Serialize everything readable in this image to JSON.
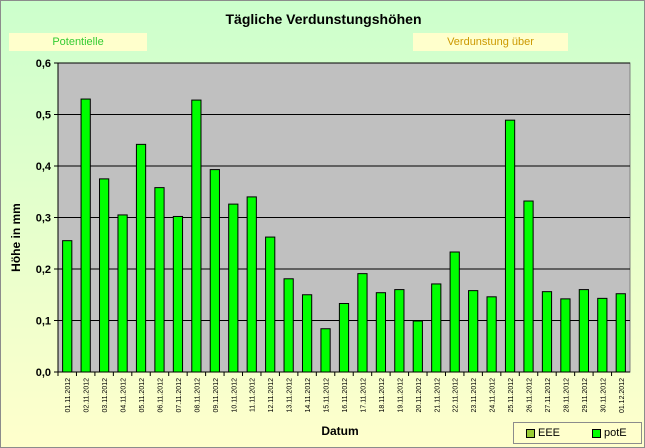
{
  "title": "Tägliche Verdunstungshöhen",
  "boxes": {
    "left": "Potentielle",
    "right": "Verdunstung über"
  },
  "legend": [
    {
      "name": "EEE",
      "color": "#99cc33"
    },
    {
      "name": "potE",
      "color": "#00ff00"
    }
  ],
  "chart_data": {
    "type": "bar",
    "title": "Tägliche Verdunstungshöhen",
    "xlabel": "Datum",
    "ylabel": "Höhe in mm",
    "ylim": [
      0,
      0.6
    ],
    "yticks": [
      "0,0",
      "0,1",
      "0,2",
      "0,3",
      "0,4",
      "0,5",
      "0,6"
    ],
    "grid": true,
    "legend_position": "bottom-right",
    "plot_background": "#c0c0c0",
    "bar_color": "#00ff00",
    "categories": [
      "01.11.2012",
      "02.11.2012",
      "03.11.2012",
      "04.11.2012",
      "05.11.2012",
      "06.11.2012",
      "07.11.2012",
      "08.11.2012",
      "09.11.2012",
      "10.11.2012",
      "11.11.2012",
      "12.11.2012",
      "13.11.2012",
      "14.11.2012",
      "15.11.2012",
      "16.11.2012",
      "17.11.2012",
      "18.11.2012",
      "19.11.2012",
      "20.11.2012",
      "21.11.2012",
      "22.11.2012",
      "23.11.2012",
      "24.11.2012",
      "25.11.2012",
      "26.11.2012",
      "27.11.2012",
      "28.11.2012",
      "29.11.2012",
      "30.11.2012",
      "01.12.2012"
    ],
    "series": [
      {
        "name": "potE",
        "values": [
          0.255,
          0.53,
          0.375,
          0.305,
          0.442,
          0.358,
          0.302,
          0.528,
          0.393,
          0.326,
          0.34,
          0.262,
          0.181,
          0.15,
          0.084,
          0.133,
          0.191,
          0.154,
          0.16,
          0.099,
          0.171,
          0.233,
          0.158,
          0.146,
          0.489,
          0.332,
          0.156,
          0.142,
          0.16,
          0.143,
          0.152
        ]
      }
    ]
  }
}
